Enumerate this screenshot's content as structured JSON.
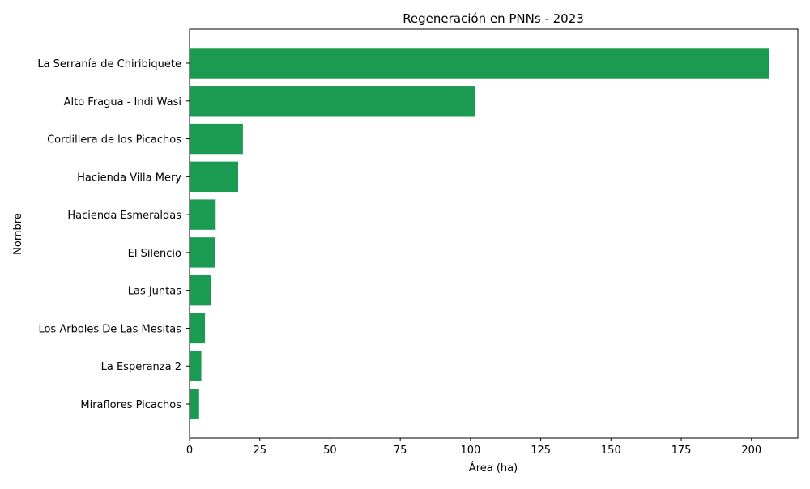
{
  "chart_data": {
    "type": "bar",
    "orientation": "horizontal",
    "title": "Regeneración en PNNs - 2023",
    "xlabel": "Área (ha)",
    "ylabel": "Nombre",
    "categories": [
      "La Serranía de Chiribiquete",
      "Alto Fragua - Indi Wasi",
      "Cordillera de los Picachos",
      "Hacienda Villa Mery",
      "Hacienda Esmeraldas",
      "El Silencio",
      "Las Juntas",
      "Los Arboles De Las Mesitas",
      "La Esperanza 2",
      "Miraflores Picachos"
    ],
    "values": [
      206.2,
      101.5,
      19.0,
      17.3,
      9.3,
      9.0,
      7.6,
      5.5,
      4.2,
      3.4
    ],
    "xlim": [
      0,
      216.5
    ],
    "xticks": [
      0,
      25,
      50,
      75,
      100,
      125,
      150,
      175,
      200
    ],
    "xtick_labels": [
      "0",
      "25",
      "50",
      "75",
      "100",
      "125",
      "150",
      "175",
      "200"
    ],
    "grid": false,
    "bar_color": "#1b9a51"
  }
}
